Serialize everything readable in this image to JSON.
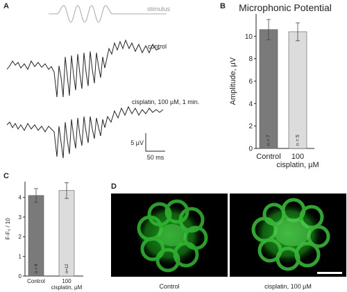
{
  "panel_labels": {
    "a": "A",
    "b": "B",
    "c": "C",
    "d": "D"
  },
  "panel_a": {
    "stimulus_label": "stimulus",
    "trace_labels": [
      "control",
      "cisplatin, 100 µM, 1 min."
    ],
    "scalebar": {
      "vertical": "5 µV",
      "horizontal": "50 ms"
    }
  },
  "chart_data": [
    {
      "type": "bar",
      "title": "Microphonic Potential",
      "ylabel": "Amplitude, µV",
      "xlabel": "",
      "categories": [
        "Control",
        "100\ncisplatin, µM"
      ],
      "category_lines": [
        [
          "Control"
        ],
        [
          "100",
          "cisplatin, µM"
        ]
      ],
      "values": [
        10.6,
        10.4
      ],
      "errors": [
        0.9,
        0.8
      ],
      "n_labels": [
        "n = 7",
        "n = 5"
      ],
      "colors": [
        "#7a7a7a",
        "#dcdcdc"
      ],
      "ylim": [
        0,
        12
      ],
      "yticks": [
        0,
        2,
        4,
        6,
        8,
        10
      ],
      "grid": false
    },
    {
      "type": "bar",
      "title": "",
      "ylabel": "F-F₀ / 10",
      "xlabel": "",
      "categories": [
        "Control",
        "100\ncisplatin, µM"
      ],
      "category_lines": [
        [
          "Control"
        ],
        [
          "100",
          "cisplatin, µM"
        ]
      ],
      "values": [
        4.1,
        4.35
      ],
      "errors": [
        0.35,
        0.4
      ],
      "n_labels": [
        "n = 8",
        "n=12"
      ],
      "colors": [
        "#7a7a7a",
        "#dcdcdc"
      ],
      "ylim": [
        0,
        4.8
      ],
      "yticks": [
        0,
        1,
        2,
        3,
        4
      ],
      "grid": false
    }
  ],
  "panel_d": {
    "captions": [
      "Control",
      "cisplatin, 100 µM"
    ]
  }
}
